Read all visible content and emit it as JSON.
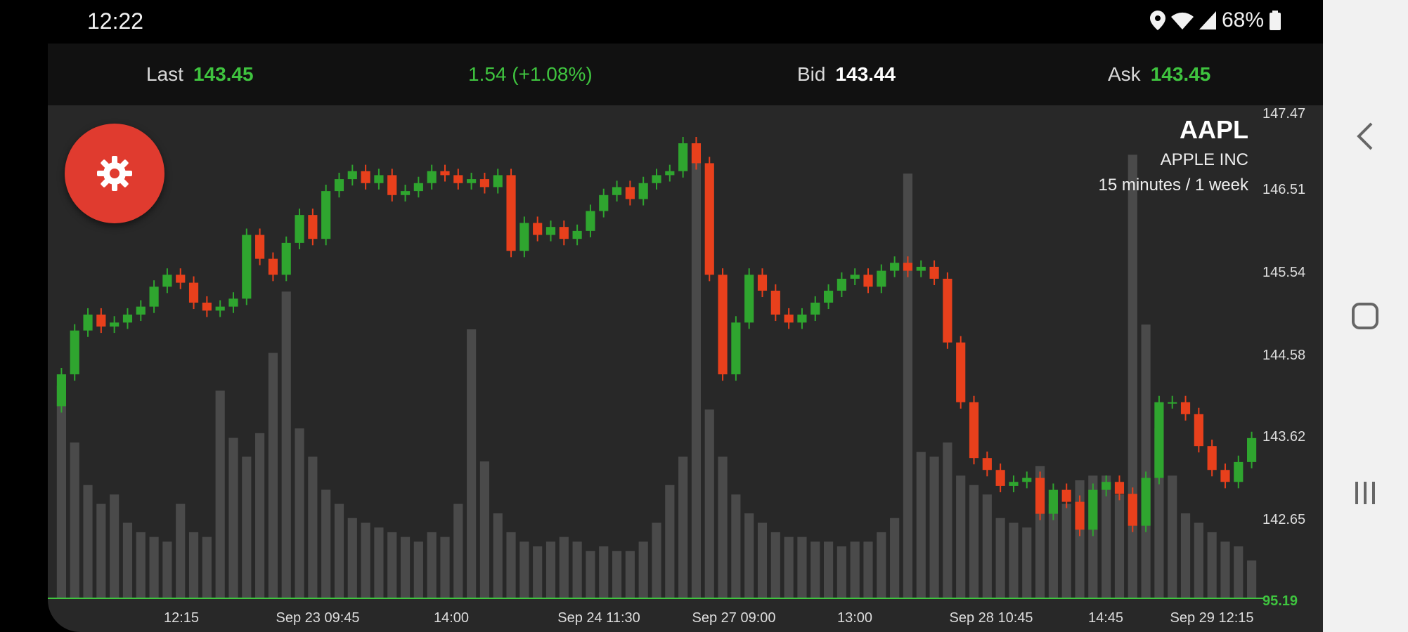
{
  "status_bar": {
    "time": "12:22",
    "battery": "68%",
    "icons": [
      "location-icon",
      "wifi-icon",
      "signal-icon",
      "battery-icon"
    ]
  },
  "quote": {
    "last_label": "Last",
    "last_value": "143.45",
    "change": "1.54 (+1.08%)",
    "bid_label": "Bid",
    "bid_value": "143.44",
    "ask_label": "Ask",
    "ask_value": "143.45"
  },
  "symbol": {
    "ticker": "AAPL",
    "name": "APPLE INC",
    "interval": "15 minutes / 1 week"
  },
  "colors": {
    "up": "#2fa52f",
    "down": "#e8401c",
    "volume": "#4a4a4a",
    "accent": "#e03b2f",
    "background": "#282828"
  },
  "chart_data": {
    "type": "candlestick",
    "y_ticks": [
      "147.47",
      "146.51",
      "145.54",
      "144.58",
      "143.62",
      "142.65"
    ],
    "y_range": [
      142.3,
      147.5
    ],
    "last_marker": "95.19",
    "x_ticks": [
      "12:15",
      "Sep 23 09:45",
      "14:00",
      "Sep 24 11:30",
      "Sep 27 09:00",
      "13:00",
      "Sep 28 10:45",
      "14:45",
      "Sep 29 12:15"
    ],
    "close": [
      144.3,
      144.85,
      145.05,
      144.9,
      144.95,
      145.05,
      145.15,
      145.4,
      145.55,
      145.45,
      145.2,
      145.1,
      145.15,
      145.25,
      146.05,
      145.75,
      145.55,
      145.95,
      146.3,
      146.0,
      146.6,
      146.75,
      146.85,
      146.7,
      146.8,
      146.55,
      146.6,
      146.7,
      146.85,
      146.8,
      146.7,
      146.75,
      146.65,
      146.8,
      145.85,
      146.2,
      146.05,
      146.15,
      146.0,
      146.1,
      146.35,
      146.55,
      146.65,
      146.5,
      146.7,
      146.8,
      146.85,
      147.2,
      146.95,
      145.55,
      144.3,
      144.95,
      145.55,
      145.35,
      145.05,
      144.95,
      145.05,
      145.2,
      145.35,
      145.5,
      145.55,
      145.4,
      145.6,
      145.7,
      145.6,
      145.65,
      145.5,
      144.7,
      143.95,
      143.25,
      143.1,
      142.9,
      142.95,
      143.0,
      142.55,
      142.85,
      142.7,
      142.35,
      142.85,
      142.95,
      142.8,
      142.4,
      143.0,
      143.95,
      143.95,
      143.8,
      143.4,
      143.1,
      142.95,
      143.2,
      143.5
    ],
    "volume": [
      0.45,
      0.33,
      0.24,
      0.2,
      0.22,
      0.16,
      0.14,
      0.13,
      0.12,
      0.2,
      0.14,
      0.13,
      0.44,
      0.34,
      0.3,
      0.35,
      0.52,
      0.65,
      0.36,
      0.3,
      0.23,
      0.2,
      0.17,
      0.16,
      0.15,
      0.14,
      0.13,
      0.12,
      0.14,
      0.13,
      0.2,
      0.57,
      0.29,
      0.18,
      0.14,
      0.12,
      0.11,
      0.12,
      0.13,
      0.12,
      0.1,
      0.11,
      0.1,
      0.1,
      0.12,
      0.16,
      0.24,
      0.3,
      0.94,
      0.4,
      0.3,
      0.22,
      0.18,
      0.16,
      0.14,
      0.13,
      0.13,
      0.12,
      0.12,
      0.11,
      0.12,
      0.12,
      0.14,
      0.17,
      0.9,
      0.31,
      0.3,
      0.33,
      0.26,
      0.24,
      0.22,
      0.17,
      0.16,
      0.15,
      0.28,
      0.2,
      0.2,
      0.25,
      0.26,
      0.26,
      0.22,
      0.94,
      0.58,
      0.36,
      0.26,
      0.18,
      0.16,
      0.14,
      0.12,
      0.11,
      0.08
    ]
  },
  "navigation": {
    "back": "back-icon",
    "home": "home-icon",
    "recents": "recents-icon"
  }
}
